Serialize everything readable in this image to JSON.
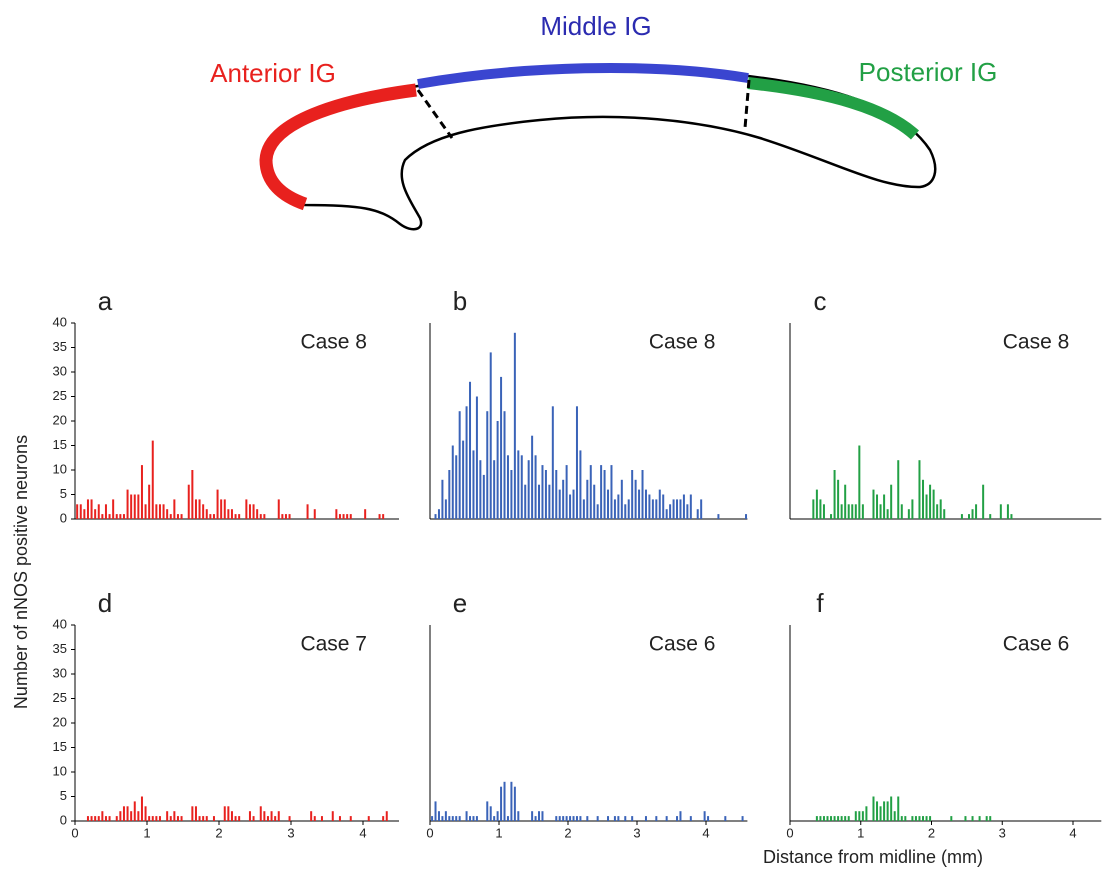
{
  "diagram": {
    "labels": [
      "Anterior IG",
      "Middle IG",
      "Posterior IG"
    ]
  },
  "axis_labels": {
    "y": "Number of nNOS positive neurons",
    "x": "Distance from midline (mm)"
  },
  "chart_data": [
    {
      "type": "bar",
      "panel": "a",
      "title": "Case 8",
      "color": "#e8211e",
      "x": [
        0.03,
        0.08,
        0.13,
        0.18,
        0.23,
        0.28,
        0.33,
        0.38,
        0.43,
        0.48,
        0.53,
        0.58,
        0.63,
        0.68,
        0.73,
        0.78,
        0.83,
        0.88,
        0.93,
        0.98,
        1.03,
        1.08,
        1.13,
        1.18,
        1.23,
        1.28,
        1.33,
        1.38,
        1.43,
        1.48,
        1.58,
        1.63,
        1.68,
        1.73,
        1.78,
        1.83,
        1.88,
        1.93,
        1.98,
        2.03,
        2.08,
        2.13,
        2.18,
        2.23,
        2.28,
        2.38,
        2.43,
        2.48,
        2.53,
        2.58,
        2.63,
        2.83,
        2.88,
        2.93,
        2.98,
        3.23,
        3.33,
        3.63,
        3.68,
        3.73,
        3.78,
        3.83,
        4.03,
        4.23,
        4.28
      ],
      "values": [
        3,
        3,
        2,
        4,
        4,
        2,
        3,
        1,
        3,
        1,
        4,
        1,
        1,
        1,
        6,
        5,
        5,
        5,
        11,
        3,
        7,
        16,
        3,
        3,
        3,
        2,
        1,
        4,
        1,
        1,
        7,
        10,
        4,
        4,
        3,
        2,
        1,
        1,
        6,
        4,
        4,
        2,
        2,
        1,
        1,
        4,
        3,
        3,
        2,
        1,
        1,
        4,
        1,
        1,
        1,
        3,
        2,
        2,
        1,
        1,
        1,
        1,
        2,
        1,
        1
      ],
      "xlim": [
        0,
        4.5
      ],
      "ylim": [
        0,
        40
      ],
      "yticks": [
        0,
        5,
        10,
        15,
        20,
        25,
        30,
        35,
        40
      ]
    },
    {
      "type": "bar",
      "panel": "b",
      "title": "Case 8",
      "color": "#3a63b8",
      "x": [
        0.08,
        0.13,
        0.18,
        0.23,
        0.28,
        0.33,
        0.38,
        0.43,
        0.48,
        0.53,
        0.58,
        0.63,
        0.68,
        0.73,
        0.78,
        0.83,
        0.88,
        0.93,
        0.98,
        1.03,
        1.08,
        1.13,
        1.18,
        1.23,
        1.28,
        1.33,
        1.38,
        1.43,
        1.48,
        1.53,
        1.58,
        1.63,
        1.68,
        1.73,
        1.78,
        1.83,
        1.88,
        1.93,
        1.98,
        2.03,
        2.08,
        2.13,
        2.18,
        2.23,
        2.28,
        2.33,
        2.38,
        2.43,
        2.48,
        2.53,
        2.58,
        2.63,
        2.68,
        2.73,
        2.78,
        2.83,
        2.88,
        2.93,
        2.98,
        3.03,
        3.08,
        3.13,
        3.18,
        3.23,
        3.28,
        3.33,
        3.38,
        3.43,
        3.48,
        3.53,
        3.58,
        3.63,
        3.68,
        3.73,
        3.78,
        3.88,
        3.93,
        4.18,
        4.58
      ],
      "values": [
        1,
        2,
        8,
        4,
        10,
        15,
        13,
        22,
        16,
        23,
        28,
        14,
        25,
        12,
        9,
        22,
        34,
        12,
        20,
        29,
        22,
        13,
        10,
        38,
        14,
        13,
        7,
        12,
        17,
        13,
        7,
        11,
        10,
        7,
        23,
        10,
        6,
        8,
        11,
        5,
        6,
        23,
        14,
        4,
        8,
        11,
        7,
        3,
        11,
        10,
        6,
        11,
        4,
        5,
        8,
        3,
        4,
        10,
        8,
        6,
        10,
        6,
        5,
        4,
        4,
        6,
        5,
        2,
        3,
        4,
        4,
        4,
        5,
        3,
        5,
        2,
        4,
        1,
        1
      ],
      "xlim": [
        0,
        4.6
      ],
      "ylim": [
        0,
        40
      ]
    },
    {
      "type": "bar",
      "panel": "c",
      "title": "Case 8",
      "color": "#22a045",
      "x": [
        0.33,
        0.38,
        0.43,
        0.48,
        0.58,
        0.63,
        0.68,
        0.73,
        0.78,
        0.83,
        0.88,
        0.93,
        0.98,
        1.03,
        1.18,
        1.23,
        1.28,
        1.33,
        1.38,
        1.43,
        1.53,
        1.58,
        1.68,
        1.73,
        1.83,
        1.88,
        1.93,
        1.98,
        2.03,
        2.08,
        2.13,
        2.18,
        2.43,
        2.53,
        2.58,
        2.63,
        2.73,
        2.83,
        2.98,
        3.08,
        3.13
      ],
      "values": [
        4,
        6,
        4,
        3,
        1,
        10,
        8,
        3,
        7,
        3,
        3,
        3,
        15,
        3,
        6,
        5,
        3,
        5,
        2,
        7,
        12,
        3,
        2,
        4,
        12,
        8,
        5,
        7,
        6,
        3,
        4,
        2,
        1,
        1,
        2,
        3,
        7,
        1,
        3,
        3,
        1
      ],
      "xlim": [
        0,
        4.4
      ],
      "ylim": [
        0,
        40
      ]
    },
    {
      "type": "bar",
      "panel": "d",
      "title": "Case 7",
      "color": "#e8211e",
      "x": [
        0.18,
        0.23,
        0.28,
        0.33,
        0.38,
        0.43,
        0.48,
        0.58,
        0.63,
        0.68,
        0.73,
        0.78,
        0.83,
        0.88,
        0.93,
        0.98,
        1.03,
        1.08,
        1.13,
        1.18,
        1.28,
        1.33,
        1.38,
        1.43,
        1.48,
        1.63,
        1.68,
        1.73,
        1.78,
        1.83,
        1.93,
        2.08,
        2.13,
        2.18,
        2.23,
        2.28,
        2.43,
        2.48,
        2.58,
        2.63,
        2.68,
        2.73,
        2.78,
        2.83,
        2.98,
        3.28,
        3.33,
        3.43,
        3.58,
        3.68,
        3.83,
        4.08,
        4.28,
        4.33
      ],
      "values": [
        1,
        1,
        1,
        1,
        2,
        1,
        1,
        1,
        2,
        3,
        3,
        2,
        4,
        2,
        5,
        3,
        1,
        1,
        1,
        1,
        2,
        1,
        2,
        1,
        1,
        3,
        3,
        1,
        1,
        1,
        1,
        3,
        3,
        2,
        1,
        1,
        2,
        1,
        3,
        2,
        1,
        2,
        1,
        2,
        1,
        2,
        1,
        1,
        2,
        1,
        1,
        1,
        1,
        2
      ],
      "xlim": [
        0,
        4.5
      ],
      "ylim": [
        0,
        40
      ],
      "yticks": [
        0,
        5,
        10,
        15,
        20,
        25,
        30,
        35,
        40
      ],
      "xticks": [
        0,
        1,
        2,
        3,
        4
      ]
    },
    {
      "type": "bar",
      "panel": "e",
      "title": "Case 6",
      "color": "#3a63b8",
      "x": [
        0.03,
        0.08,
        0.13,
        0.18,
        0.23,
        0.28,
        0.33,
        0.38,
        0.43,
        0.53,
        0.58,
        0.63,
        0.68,
        0.83,
        0.88,
        0.93,
        0.98,
        1.03,
        1.08,
        1.13,
        1.18,
        1.23,
        1.28,
        1.48,
        1.53,
        1.58,
        1.63,
        1.83,
        1.88,
        1.93,
        1.98,
        2.03,
        2.08,
        2.13,
        2.18,
        2.28,
        2.43,
        2.58,
        2.68,
        2.73,
        2.83,
        2.93,
        3.13,
        3.28,
        3.43,
        3.58,
        3.63,
        3.78,
        3.98,
        4.03,
        4.28,
        4.53
      ],
      "values": [
        1,
        4,
        2,
        1,
        2,
        1,
        1,
        1,
        1,
        2,
        1,
        1,
        1,
        4,
        3,
        1,
        2,
        7,
        8,
        1,
        8,
        7,
        2,
        2,
        1,
        2,
        2,
        1,
        1,
        1,
        1,
        1,
        1,
        1,
        1,
        1,
        1,
        1,
        1,
        1,
        1,
        1,
        1,
        1,
        1,
        1,
        2,
        1,
        2,
        1,
        1,
        1
      ],
      "xlim": [
        0,
        4.6
      ],
      "ylim": [
        0,
        40
      ],
      "xticks": [
        0,
        1,
        2,
        3,
        4
      ]
    },
    {
      "type": "bar",
      "panel": "f",
      "title": "Case 6",
      "color": "#22a045",
      "x": [
        0.38,
        0.43,
        0.48,
        0.53,
        0.58,
        0.63,
        0.68,
        0.73,
        0.78,
        0.83,
        0.93,
        0.98,
        1.03,
        1.08,
        1.18,
        1.23,
        1.28,
        1.33,
        1.38,
        1.43,
        1.48,
        1.53,
        1.58,
        1.63,
        1.73,
        1.78,
        1.83,
        1.88,
        1.93,
        1.98,
        2.28,
        2.48,
        2.58,
        2.68,
        2.78,
        2.83
      ],
      "values": [
        1,
        1,
        1,
        1,
        1,
        1,
        1,
        1,
        1,
        1,
        2,
        2,
        2,
        3,
        5,
        4,
        3,
        4,
        4,
        5,
        2,
        5,
        1,
        1,
        1,
        1,
        1,
        1,
        1,
        1,
        1,
        1,
        1,
        1,
        1,
        1
      ],
      "xlim": [
        0,
        4.4
      ],
      "ylim": [
        0,
        40
      ],
      "xticks": [
        0,
        1,
        2,
        3,
        4
      ]
    }
  ]
}
